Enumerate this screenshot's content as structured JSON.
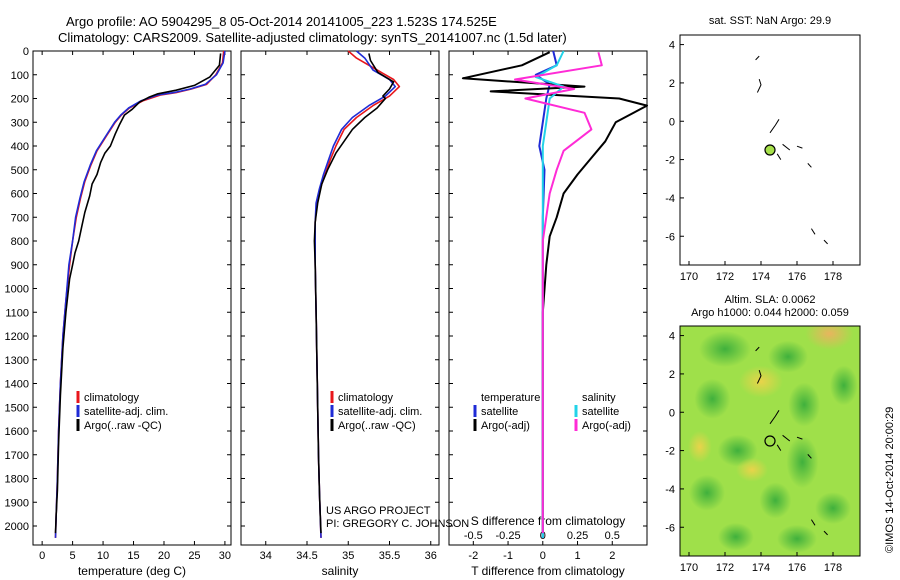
{
  "header": {
    "line1": "Argo profile: AO 5904295_8 05-Oct-2014 20141005_223 1.523S 174.525E",
    "line2": "Climatology: CARS2009. Satellite-adjusted climatology: synTS_20141007.nc (1.5d later)"
  },
  "project": {
    "line1": "US ARGO PROJECT",
    "line2": "PI: GREGORY C. JOHNSON"
  },
  "side_stamp": "©IMOS 14-Oct-2014 20:00:29",
  "colors": {
    "climatology": "#e8161b",
    "satellite": "#1f2bd6",
    "argo": "#000000",
    "sal_sat": "#22d3e8",
    "sal_argo": "#ff2bd6"
  },
  "chart_data": [
    {
      "type": "line",
      "xlabel": "temperature (deg C)",
      "ylabel": "",
      "xlim": [
        -1.5,
        31
      ],
      "ylim": [
        2080,
        0
      ],
      "xticks": [
        0,
        5,
        10,
        15,
        20,
        25,
        30
      ],
      "yticks": [
        0,
        100,
        200,
        300,
        400,
        500,
        600,
        700,
        800,
        900,
        1000,
        1100,
        1200,
        1300,
        1400,
        1500,
        1600,
        1700,
        1800,
        1900,
        2000
      ],
      "legend": [
        "climatology",
        "satellite-adj. clim.",
        "Argo(..raw -QC)"
      ],
      "legend_placement": "lower-left",
      "series": [
        {
          "name": "climatology",
          "color": "#e8161b",
          "x": [
            29.8,
            29.6,
            28.5,
            27.0,
            24.5,
            22.0,
            19.5,
            16.5,
            14.3,
            13.0,
            12.0,
            10.5,
            9.0,
            8.0,
            7.0,
            6.3,
            5.6,
            5.0,
            4.5,
            3.9,
            3.4,
            3.0,
            2.7,
            2.5,
            2.3,
            2.2
          ],
          "y": [
            0,
            50,
            100,
            140,
            160,
            175,
            185,
            210,
            240,
            270,
            300,
            360,
            420,
            480,
            550,
            620,
            700,
            800,
            900,
            1050,
            1200,
            1400,
            1600,
            1800,
            1950,
            2050
          ]
        },
        {
          "name": "satellite-adj. clim.",
          "color": "#1f2bd6",
          "x": [
            30.0,
            29.7,
            28.6,
            26.8,
            24.3,
            21.6,
            19.0,
            16.2,
            14.2,
            12.9,
            11.9,
            10.4,
            8.9,
            7.9,
            6.9,
            6.2,
            5.5,
            5.0,
            4.4,
            3.9,
            3.4,
            3.0,
            2.7,
            2.5,
            2.3,
            2.2
          ],
          "y": [
            0,
            50,
            100,
            140,
            160,
            175,
            185,
            210,
            240,
            270,
            300,
            360,
            420,
            480,
            550,
            620,
            700,
            800,
            900,
            1050,
            1200,
            1400,
            1600,
            1800,
            1950,
            2050
          ]
        },
        {
          "name": "Argo(..raw -QC)",
          "color": "#000000",
          "x": [
            29.3,
            29.1,
            27.5,
            25.0,
            22.0,
            19.0,
            17.5,
            16.0,
            14.8,
            13.5,
            12.7,
            12.0,
            11.2,
            10.3,
            9.6,
            9.0,
            8.2,
            7.8,
            7.0,
            6.5,
            6.0,
            5.4,
            5.0,
            4.5,
            3.9,
            3.4,
            3.0,
            2.7,
            2.5,
            2.3,
            2.2
          ],
          "y": [
            10,
            60,
            110,
            145,
            165,
            180,
            195,
            215,
            245,
            270,
            310,
            350,
            400,
            430,
            470,
            520,
            560,
            610,
            680,
            740,
            800,
            850,
            900,
            960,
            1100,
            1250,
            1450,
            1650,
            1850,
            1950,
            2030
          ]
        }
      ]
    },
    {
      "type": "line",
      "xlabel": "salinity",
      "ylabel": "",
      "xlim": [
        33.7,
        36.1
      ],
      "ylim": [
        2080,
        0
      ],
      "xticks": [
        34,
        34.5,
        35,
        35.5,
        36
      ],
      "xticklabels": [
        "34",
        "34.5",
        "35",
        "35.5",
        "36"
      ],
      "legend": [
        "climatology",
        "satellite-adj. clim.",
        "Argo(..raw -QC)"
      ],
      "legend_placement": "lower-right",
      "series": [
        {
          "name": "climatology",
          "color": "#e8161b",
          "x": [
            35.0,
            35.1,
            35.35,
            35.55,
            35.62,
            35.5,
            35.3,
            35.1,
            34.95,
            34.85,
            34.78,
            34.72,
            34.66,
            34.62,
            34.6,
            34.6,
            34.6,
            34.61,
            34.62,
            34.63,
            34.64,
            34.65,
            34.66,
            34.67
          ],
          "y": [
            0,
            30,
            80,
            120,
            150,
            190,
            230,
            280,
            330,
            400,
            460,
            520,
            580,
            640,
            720,
            800,
            900,
            1100,
            1300,
            1500,
            1700,
            1850,
            1950,
            2050
          ]
        },
        {
          "name": "satellite-adj. clim.",
          "color": "#1f2bd6",
          "x": [
            35.1,
            35.2,
            35.3,
            35.5,
            35.57,
            35.45,
            35.25,
            35.05,
            34.92,
            34.82,
            34.76,
            34.7,
            34.65,
            34.61,
            34.6,
            34.6,
            34.6,
            34.61,
            34.62,
            34.63,
            34.64,
            34.65,
            34.66,
            34.67
          ],
          "y": [
            0,
            30,
            80,
            120,
            150,
            190,
            230,
            280,
            330,
            400,
            460,
            520,
            580,
            640,
            720,
            800,
            900,
            1100,
            1300,
            1500,
            1700,
            1850,
            1950,
            2050
          ]
        },
        {
          "name": "Argo(..raw -QC)",
          "color": "#000000",
          "x": [
            35.25,
            35.27,
            35.36,
            35.55,
            35.5,
            35.42,
            35.45,
            35.35,
            35.2,
            35.05,
            34.95,
            34.85,
            34.75,
            34.68,
            34.63,
            34.6,
            34.59,
            34.6,
            34.61,
            34.62,
            34.63,
            34.64,
            34.65,
            34.66,
            34.67
          ],
          "y": [
            10,
            40,
            90,
            130,
            160,
            190,
            200,
            240,
            280,
            330,
            380,
            430,
            500,
            560,
            640,
            720,
            800,
            900,
            1100,
            1300,
            1500,
            1700,
            1850,
            1950,
            2030
          ]
        }
      ]
    },
    {
      "type": "line",
      "xlabel": "T difference from climatology",
      "xlabel2": "S difference from climatology",
      "ylabel": "",
      "xlim": [
        -2.7,
        3.0
      ],
      "ylim": [
        2080,
        0
      ],
      "xticks": [
        -2,
        -1,
        0,
        1,
        2
      ],
      "xticks2": [
        -0.5,
        -0.25,
        0,
        0.25,
        0.5
      ],
      "xticklabels2": [
        "-0.5",
        "-0.25",
        "0",
        "0.25",
        "0.5"
      ],
      "legend_groups": [
        {
          "title": "temperature",
          "entries": [
            "satellite",
            "Argo(-adj)"
          ]
        },
        {
          "title": "salinity",
          "entries": [
            "satellite",
            "Argo(-adj)"
          ]
        }
      ],
      "legend_placement": "middle",
      "series": [
        {
          "name": "T satellite",
          "color": "#1f2bd6",
          "x": [
            0.3,
            0.4,
            -0.2,
            0.2,
            0.1,
            0.0,
            -0.1,
            0.05,
            0.0,
            0.0,
            0.0,
            0.0,
            0.0,
            0.0
          ],
          "y": [
            0,
            60,
            100,
            140,
            200,
            300,
            400,
            500,
            700,
            900,
            1200,
            1500,
            1800,
            2050
          ]
        },
        {
          "name": "T Argo(-adj)",
          "color": "#000000",
          "x": [
            0.2,
            -0.6,
            -2.3,
            1.2,
            -1.5,
            2.2,
            3.0,
            2.1,
            1.8,
            1.4,
            1.0,
            0.6,
            0.4,
            0.2,
            0.1,
            0.0,
            0.0,
            0.0,
            0.0
          ],
          "y": [
            5,
            60,
            115,
            150,
            170,
            200,
            230,
            300,
            380,
            450,
            520,
            600,
            700,
            780,
            900,
            1100,
            1400,
            1700,
            2030
          ]
        },
        {
          "name": "S satellite",
          "color": "#22d3e8",
          "x": [
            0.6,
            0.4,
            -0.2,
            0.6,
            0.2,
            0.1,
            0.0,
            0.0,
            0.0,
            0.0,
            0.0,
            0.0,
            0.0
          ],
          "y": [
            0,
            60,
            110,
            150,
            200,
            300,
            400,
            600,
            800,
            1100,
            1400,
            1700,
            2050
          ]
        },
        {
          "name": "S Argo(-adj)",
          "color": "#ff2bd6",
          "x": [
            1.6,
            1.7,
            -0.8,
            0.9,
            -0.5,
            1.2,
            1.4,
            0.6,
            0.4,
            0.2,
            0.0,
            0.0,
            0.0
          ],
          "y": [
            5,
            60,
            120,
            160,
            200,
            260,
            330,
            420,
            500,
            600,
            800,
            1200,
            2030
          ]
        }
      ]
    },
    {
      "type": "scatter",
      "title": "sat. SST: NaN Argo: 29.9",
      "xlim": [
        169.5,
        179.5
      ],
      "ylim": [
        -7.5,
        4.5
      ],
      "xticks": [
        170,
        172,
        174,
        176,
        178
      ],
      "yticks": [
        4,
        2,
        0,
        -2,
        -4,
        -6
      ],
      "points": [
        {
          "x": 174.5,
          "y": -1.5
        }
      ]
    },
    {
      "type": "heatmap",
      "title": "Altim. SLA: 0.0062",
      "subtitle": "Argo h1000: 0.044 h2000: 0.059",
      "xlim": [
        169.5,
        179.5
      ],
      "ylim": [
        -7.5,
        4.5
      ],
      "xticks": [
        170,
        172,
        174,
        176,
        178
      ],
      "yticks": [
        4,
        2,
        0,
        -2,
        -4,
        -6
      ],
      "points": [
        {
          "x": 174.5,
          "y": -1.5
        }
      ]
    }
  ]
}
